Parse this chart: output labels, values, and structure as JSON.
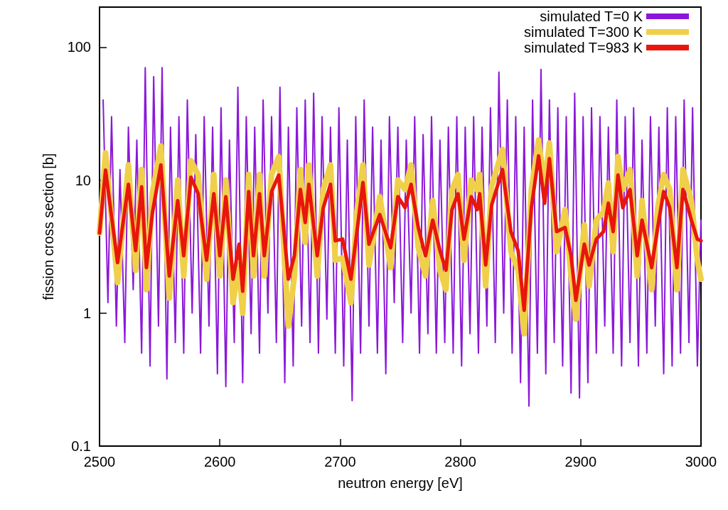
{
  "chart_data": {
    "type": "line",
    "xlabel": "neutron energy [eV]",
    "ylabel": "fission cross section [b]",
    "log": "y",
    "xlim": [
      2500,
      3000
    ],
    "xticks": [
      2500,
      2600,
      2700,
      2800,
      2900,
      3000
    ],
    "ylim": [
      0.1,
      200
    ],
    "yticks": [
      0.1,
      1,
      10,
      100
    ],
    "grid": false,
    "legend": "top right",
    "marker": "none",
    "line_style": "solid",
    "series": [
      {
        "name": "simulated T=0 K",
        "color": "#8b18d8",
        "x": [
          2503,
          2507,
          2510,
          2514,
          2517,
          2521,
          2524,
          2528,
          2531,
          2535,
          2538,
          2542,
          2545,
          2549,
          2552,
          2556,
          2559,
          2563,
          2566,
          2570,
          2573,
          2577,
          2580,
          2584,
          2587,
          2591,
          2594,
          2598,
          2601,
          2605,
          2608,
          2612,
          2615,
          2619,
          2622,
          2626,
          2629,
          2633,
          2636,
          2640,
          2643,
          2647,
          2650,
          2654,
          2657,
          2661,
          2664,
          2668,
          2671,
          2675,
          2678,
          2682,
          2685,
          2689,
          2692,
          2696,
          2699,
          2703,
          2706,
          2710,
          2713,
          2717,
          2720,
          2724,
          2727,
          2731,
          2734,
          2738,
          2741,
          2745,
          2748,
          2752,
          2755,
          2759,
          2762,
          2766,
          2769,
          2773,
          2776,
          2780,
          2783,
          2787,
          2790,
          2794,
          2797,
          2801,
          2804,
          2808,
          2811,
          2815,
          2818,
          2822,
          2825,
          2829,
          2832,
          2836,
          2839,
          2843,
          2846,
          2850,
          2853,
          2857,
          2860,
          2864,
          2867,
          2871,
          2874,
          2878,
          2881,
          2885,
          2888,
          2892,
          2895,
          2899,
          2902,
          2906,
          2909,
          2913,
          2916,
          2920,
          2923,
          2927,
          2930,
          2934,
          2937,
          2941,
          2944,
          2948,
          2951,
          2955,
          2958,
          2962,
          2965,
          2969,
          2972,
          2976,
          2979,
          2983,
          2986,
          2990,
          2993,
          2997,
          3000
        ],
        "values": [
          40,
          1.2,
          30,
          0.8,
          12,
          0.6,
          25,
          1.5,
          20,
          0.5,
          70,
          0.4,
          60,
          0.8,
          70,
          0.32,
          25,
          0.6,
          30,
          0.5,
          40,
          1.0,
          22,
          0.5,
          30,
          0.8,
          25,
          0.35,
          35,
          0.28,
          20,
          0.6,
          50,
          0.3,
          30,
          0.7,
          25,
          0.5,
          40,
          1.0,
          30,
          0.6,
          50,
          0.3,
          25,
          0.4,
          35,
          0.8,
          40,
          0.6,
          45,
          0.5,
          30,
          0.9,
          25,
          0.5,
          35,
          0.4,
          20,
          0.22,
          30,
          0.5,
          40,
          0.8,
          25,
          0.5,
          20,
          0.35,
          30,
          1.2,
          25,
          0.6,
          20,
          1.0,
          30,
          0.5,
          22,
          0.7,
          30,
          0.5,
          20,
          0.6,
          25,
          0.5,
          30,
          0.4,
          25,
          0.7,
          30,
          0.5,
          25,
          0.8,
          35,
          0.6,
          65,
          1.0,
          40,
          0.5,
          30,
          0.3,
          25,
          0.2,
          40,
          0.5,
          68,
          0.35,
          40,
          0.6,
          35,
          0.4,
          30,
          0.25,
          45,
          0.23,
          30,
          0.3,
          35,
          0.5,
          30,
          0.8,
          25,
          0.5,
          40,
          0.4,
          30,
          0.6,
          35,
          0.4,
          20,
          0.5,
          30,
          0.8,
          25,
          0.35,
          35,
          0.4,
          30,
          0.5,
          40,
          0.6,
          35,
          0.4,
          5
        ]
      },
      {
        "name": "simulated T=300 K",
        "color": "#f0d04a",
        "x": [
          2500,
          2505,
          2515,
          2524,
          2530,
          2535,
          2539,
          2544,
          2551,
          2558,
          2565,
          2570,
          2576,
          2582,
          2589,
          2595,
          2600,
          2605,
          2611,
          2616,
          2619,
          2624,
          2628,
          2633,
          2637,
          2643,
          2649,
          2657,
          2662,
          2667,
          2671,
          2674,
          2681,
          2686,
          2692,
          2696,
          2702,
          2709,
          2714,
          2719,
          2724,
          2733,
          2742,
          2748,
          2754,
          2759,
          2765,
          2771,
          2777,
          2783,
          2788,
          2793,
          2798,
          2803,
          2809,
          2814,
          2816,
          2821,
          2826,
          2835,
          2842,
          2848,
          2853,
          2859,
          2865,
          2870,
          2874,
          2880,
          2887,
          2892,
          2896,
          2903,
          2907,
          2913,
          2919,
          2923,
          2927,
          2931,
          2935,
          2941,
          2947,
          2951,
          2959,
          2964,
          2969,
          2974,
          2980,
          2985,
          2992,
          2997,
          3000
        ],
        "values": [
          4,
          16,
          1.7,
          13,
          2.1,
          12,
          1.5,
          8,
          18,
          1.3,
          10,
          1.9,
          14,
          11,
          1.8,
          11,
          1.9,
          10,
          1.2,
          2.3,
          1.0,
          11,
          1.9,
          11,
          1.9,
          11,
          15,
          0.8,
          1.9,
          12,
          3.4,
          13,
          1.9,
          8.5,
          13,
          2.5,
          2.6,
          1.2,
          5.8,
          13,
          2.3,
          7.5,
          2.2,
          10,
          8.5,
          13,
          3.1,
          1.9,
          7,
          2.1,
          1.5,
          8.4,
          11,
          2.5,
          10,
          8.4,
          11,
          1.6,
          9,
          17,
          2.9,
          2.1,
          0.7,
          8.5,
          20,
          9,
          19,
          2.9,
          6,
          1.9,
          0.9,
          4.6,
          1.6,
          5,
          5.8,
          9.5,
          2.9,
          15,
          8.5,
          12,
          1.9,
          7,
          1.5,
          6.2,
          11,
          8.5,
          1.5,
          12,
          7,
          2.5,
          1.8
        ]
      },
      {
        "name": "simulated T=983 K",
        "color": "#e8160c",
        "x": [
          2500,
          2505,
          2515,
          2524,
          2530,
          2535,
          2539,
          2544,
          2551,
          2558,
          2565,
          2570,
          2576,
          2582,
          2589,
          2595,
          2600,
          2605,
          2611,
          2616,
          2619,
          2624,
          2628,
          2633,
          2637,
          2643,
          2649,
          2657,
          2662,
          2667,
          2671,
          2674,
          2681,
          2686,
          2692,
          2696,
          2702,
          2709,
          2714,
          2719,
          2724,
          2733,
          2742,
          2748,
          2754,
          2759,
          2765,
          2771,
          2777,
          2783,
          2788,
          2793,
          2798,
          2803,
          2809,
          2814,
          2816,
          2821,
          2826,
          2835,
          2842,
          2848,
          2853,
          2859,
          2865,
          2870,
          2874,
          2880,
          2887,
          2892,
          2896,
          2903,
          2907,
          2913,
          2919,
          2923,
          2927,
          2931,
          2935,
          2941,
          2947,
          2951,
          2959,
          2964,
          2969,
          2974,
          2980,
          2985,
          2992,
          2997,
          3000
        ],
        "values": [
          4,
          11.9,
          2.4,
          9.3,
          2.95,
          8.9,
          2.2,
          5.7,
          13,
          1.9,
          7,
          2.7,
          10.5,
          7.9,
          2.5,
          7.9,
          2.7,
          7.5,
          1.8,
          3.3,
          1.46,
          8.2,
          2.7,
          7.9,
          2.7,
          8.2,
          10.9,
          1.8,
          2.7,
          8.5,
          4.8,
          9.3,
          2.7,
          6.2,
          9.3,
          3.5,
          3.6,
          1.8,
          4.1,
          9.6,
          3.3,
          5.5,
          3.1,
          7.5,
          6.2,
          9.3,
          4.4,
          2.7,
          5,
          2.95,
          2.1,
          6,
          7.9,
          3.6,
          7.5,
          6,
          7.9,
          2.3,
          6.5,
          12,
          4.1,
          2.95,
          1.05,
          6.2,
          15.2,
          6.7,
          14.5,
          4.1,
          4.4,
          2.7,
          1.25,
          3.3,
          2.3,
          3.6,
          4.1,
          6.7,
          4.1,
          10.9,
          6.2,
          8.5,
          2.7,
          5,
          2.2,
          4.4,
          8.2,
          6.2,
          2.2,
          8.5,
          5,
          3.6,
          3.5
        ]
      }
    ]
  }
}
